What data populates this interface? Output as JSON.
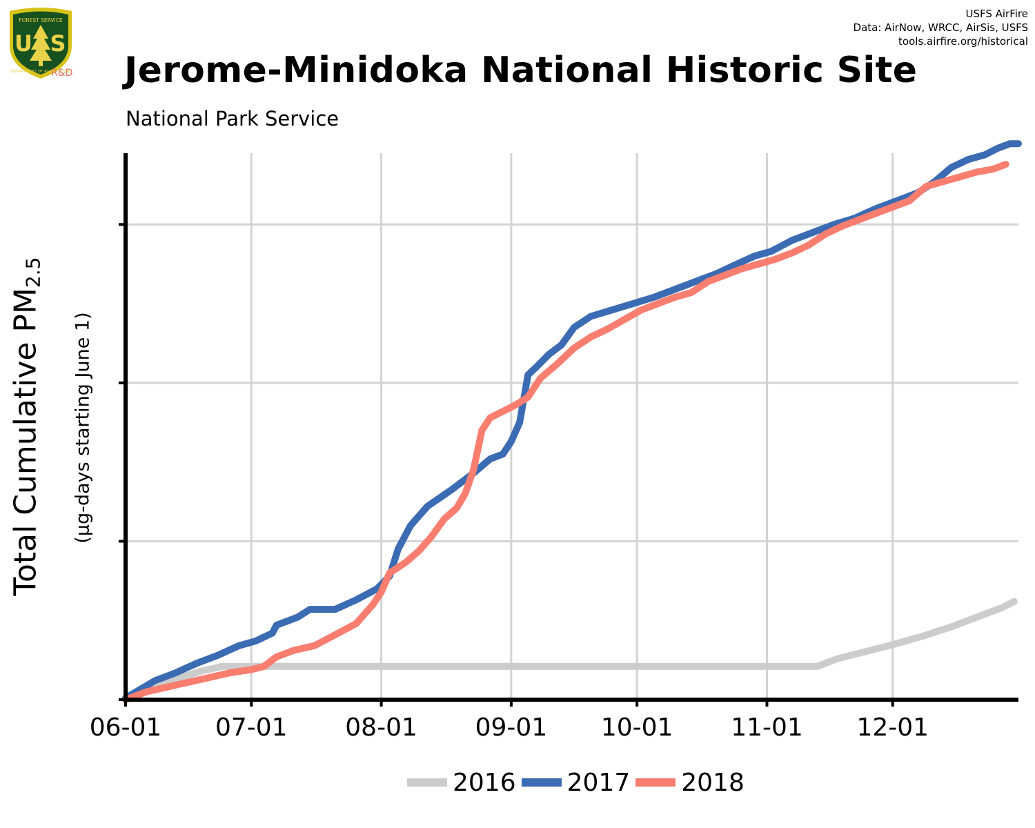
{
  "header": {
    "credits": [
      "USFS AirFire",
      "Data: AirNow, WRCC, AirSis, USFS",
      "tools.airfire.org/historical"
    ],
    "title": "Jerome-Minidoka National Historic Site",
    "subtitle": "National Park Service",
    "logo": {
      "name": "usfs-logo-icon",
      "top_text": "FOREST SERVICE",
      "letters": "U S",
      "bottom_text": "DEPARTMENT OF AGRICULTURE",
      "badge": "R&D",
      "colors": {
        "shield": "#17511f",
        "rim": "#d8c419",
        "text": "#e8d24a",
        "badge": "#e4735e"
      }
    }
  },
  "chart_data": {
    "type": "line",
    "title": "Jerome-Minidoka National Historic Site",
    "subtitle": "National Park Service",
    "ylabel": "Total Cumulative PM2.5",
    "ylabel_main": "Total Cumulative PM",
    "ylabel_sub": "2.5",
    "ylabel_units": "(µg-days starting June 1)",
    "xlabel": "",
    "x_tick_labels": [
      "06-01",
      "07-01",
      "08-01",
      "09-01",
      "10-01",
      "11-01",
      "12-01"
    ],
    "x_tick_days": [
      0,
      30,
      61,
      92,
      122,
      153,
      183
    ],
    "xlim": [
      0,
      213
    ],
    "ylim": [
      0,
      345
    ],
    "y_ticks": [
      0,
      100,
      200,
      300
    ],
    "y_tick_labels_shown": false,
    "grid": true,
    "legend_placement": "bottom-center",
    "series": [
      {
        "name": "2016",
        "color": "#cccccc",
        "points": [
          [
            0,
            0
          ],
          [
            6,
            6
          ],
          [
            12,
            13
          ],
          [
            18,
            18
          ],
          [
            23,
            21
          ],
          [
            30,
            21
          ],
          [
            60,
            21
          ],
          [
            100,
            21
          ],
          [
            140,
            21
          ],
          [
            160,
            21
          ],
          [
            165,
            21
          ],
          [
            170,
            26
          ],
          [
            176,
            30
          ],
          [
            182,
            34
          ],
          [
            190,
            40
          ],
          [
            197,
            46
          ],
          [
            203,
            52
          ],
          [
            209,
            58
          ],
          [
            212,
            62
          ]
        ]
      },
      {
        "name": "2017",
        "color": "#3a6bb3",
        "points": [
          [
            0,
            1
          ],
          [
            7,
            12
          ],
          [
            12,
            17
          ],
          [
            17,
            23
          ],
          [
            22,
            28
          ],
          [
            27,
            34
          ],
          [
            31,
            37
          ],
          [
            35,
            42
          ],
          [
            36,
            47
          ],
          [
            41,
            52
          ],
          [
            44,
            57
          ],
          [
            50,
            57
          ],
          [
            55,
            63
          ],
          [
            60,
            70
          ],
          [
            63,
            78
          ],
          [
            65,
            95
          ],
          [
            68,
            110
          ],
          [
            72,
            122
          ],
          [
            78,
            133
          ],
          [
            83,
            143
          ],
          [
            87,
            152
          ],
          [
            90,
            155
          ],
          [
            92,
            163
          ],
          [
            94,
            175
          ],
          [
            96,
            205
          ],
          [
            98,
            210
          ],
          [
            101,
            218
          ],
          [
            104,
            224
          ],
          [
            107,
            235
          ],
          [
            111,
            242
          ],
          [
            116,
            246
          ],
          [
            121,
            250
          ],
          [
            126,
            254
          ],
          [
            131,
            259
          ],
          [
            136,
            264
          ],
          [
            141,
            269
          ],
          [
            145,
            274
          ],
          [
            150,
            280
          ],
          [
            154,
            283
          ],
          [
            159,
            290
          ],
          [
            164,
            295
          ],
          [
            169,
            300
          ],
          [
            174,
            304
          ],
          [
            179,
            310
          ],
          [
            184,
            315
          ],
          [
            189,
            320
          ],
          [
            193,
            327
          ],
          [
            197,
            336
          ],
          [
            201,
            341
          ],
          [
            205,
            344
          ],
          [
            208,
            348
          ],
          [
            211,
            351
          ],
          [
            213,
            351
          ]
        ]
      },
      {
        "name": "2018",
        "color": "#f97e70",
        "points": [
          [
            0,
            0
          ],
          [
            5,
            5
          ],
          [
            10,
            8
          ],
          [
            15,
            11
          ],
          [
            20,
            14
          ],
          [
            25,
            17
          ],
          [
            30,
            19
          ],
          [
            33,
            21
          ],
          [
            36,
            27
          ],
          [
            40,
            31
          ],
          [
            45,
            34
          ],
          [
            50,
            41
          ],
          [
            55,
            48
          ],
          [
            59,
            60
          ],
          [
            61,
            68
          ],
          [
            63,
            80
          ],
          [
            67,
            87
          ],
          [
            70,
            94
          ],
          [
            73,
            103
          ],
          [
            76,
            114
          ],
          [
            79,
            121
          ],
          [
            81,
            130
          ],
          [
            83,
            145
          ],
          [
            85,
            170
          ],
          [
            87,
            178
          ],
          [
            90,
            182
          ],
          [
            93,
            186
          ],
          [
            96,
            191
          ],
          [
            99,
            203
          ],
          [
            103,
            212
          ],
          [
            107,
            222
          ],
          [
            111,
            229
          ],
          [
            115,
            234
          ],
          [
            119,
            240
          ],
          [
            123,
            246
          ],
          [
            127,
            250
          ],
          [
            131,
            254
          ],
          [
            135,
            257
          ],
          [
            139,
            264
          ],
          [
            143,
            268
          ],
          [
            147,
            272
          ],
          [
            151,
            275
          ],
          [
            155,
            278
          ],
          [
            159,
            282
          ],
          [
            163,
            287
          ],
          [
            167,
            294
          ],
          [
            171,
            299
          ],
          [
            175,
            303
          ],
          [
            179,
            307
          ],
          [
            183,
            311
          ],
          [
            187,
            315
          ],
          [
            191,
            324
          ],
          [
            195,
            327
          ],
          [
            199,
            330
          ],
          [
            203,
            333
          ],
          [
            207,
            335
          ],
          [
            210,
            338
          ]
        ]
      }
    ]
  }
}
